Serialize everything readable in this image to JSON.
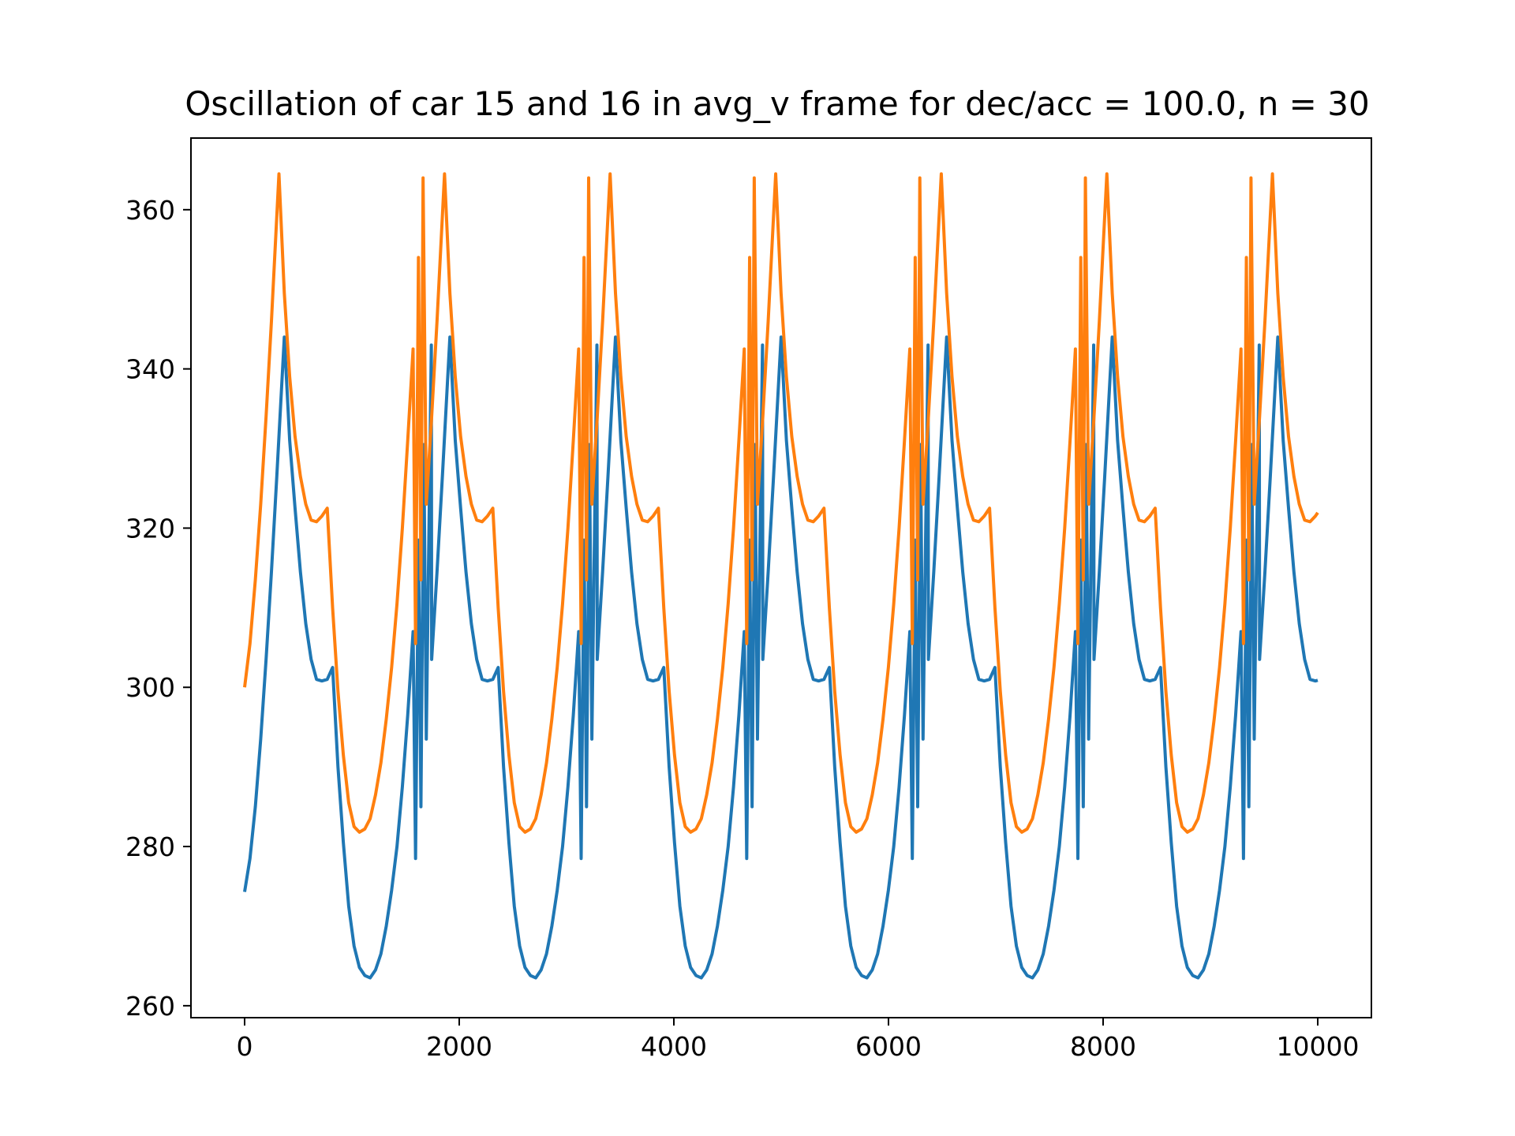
{
  "chart_data": {
    "type": "line",
    "title": "Oscillation of car 15 and 16 in avg_v frame for dec/acc = 100.0, n = 30",
    "xlabel": "",
    "ylabel": "",
    "xlim": [
      -500,
      10500
    ],
    "ylim": [
      258.5,
      369
    ],
    "x_ticks": [
      0,
      2000,
      4000,
      6000,
      8000,
      10000
    ],
    "x_tick_labels": [
      "0",
      "2000",
      "4000",
      "6000",
      "8000",
      "10000"
    ],
    "y_ticks": [
      260,
      280,
      300,
      320,
      340,
      360
    ],
    "y_tick_labels": [
      "260",
      "280",
      "300",
      "320",
      "340",
      "360"
    ],
    "grid": false,
    "legend": "none",
    "period": 1543,
    "x_end": 10000,
    "sample_step": 50,
    "series": [
      {
        "color": "#1f77b4",
        "start": [
          0,
          274.3
        ],
        "pattern": [
          [
            50,
            278.5
          ],
          [
            100,
            285.0
          ],
          [
            150,
            293.5
          ],
          [
            200,
            303.5
          ],
          [
            250,
            314.5
          ],
          [
            300,
            326.5
          ],
          [
            370,
            344.0
          ],
          [
            420,
            331.0
          ],
          [
            470,
            322.5
          ],
          [
            520,
            314.5
          ],
          [
            570,
            308.0
          ],
          [
            620,
            303.5
          ],
          [
            670,
            301.0
          ],
          [
            720,
            300.8
          ],
          [
            770,
            301.0
          ],
          [
            820,
            302.5
          ],
          [
            870,
            290.0
          ],
          [
            920,
            280.5
          ],
          [
            970,
            272.5
          ],
          [
            1020,
            267.5
          ],
          [
            1070,
            264.8
          ],
          [
            1120,
            263.8
          ],
          [
            1170,
            263.5
          ],
          [
            1220,
            264.5
          ],
          [
            1270,
            266.5
          ],
          [
            1320,
            270.0
          ],
          [
            1370,
            274.5
          ],
          [
            1420,
            280.0
          ],
          [
            1470,
            287.5
          ],
          [
            1520,
            296.5
          ],
          [
            1570,
            307.0
          ],
          [
            1620,
            318.5
          ],
          [
            1670,
            330.5
          ],
          [
            1740,
            343.0
          ]
        ]
      },
      {
        "color": "#ff7f0e",
        "start": [
          0,
          300.0
        ],
        "pattern": [
          [
            50,
            305.5
          ],
          [
            100,
            313.5
          ],
          [
            150,
            323.0
          ],
          [
            200,
            334.0
          ],
          [
            250,
            346.0
          ],
          [
            320,
            364.5
          ],
          [
            370,
            349.5
          ],
          [
            420,
            339.0
          ],
          [
            470,
            331.5
          ],
          [
            520,
            326.5
          ],
          [
            570,
            323.0
          ],
          [
            620,
            321.0
          ],
          [
            670,
            320.8
          ],
          [
            720,
            321.5
          ],
          [
            770,
            322.5
          ],
          [
            820,
            310.0
          ],
          [
            870,
            299.5
          ],
          [
            920,
            291.5
          ],
          [
            970,
            285.5
          ],
          [
            1020,
            282.5
          ],
          [
            1070,
            281.8
          ],
          [
            1120,
            282.2
          ],
          [
            1170,
            283.5
          ],
          [
            1220,
            286.5
          ],
          [
            1270,
            290.5
          ],
          [
            1320,
            296.0
          ],
          [
            1370,
            302.5
          ],
          [
            1420,
            310.5
          ],
          [
            1470,
            320.0
          ],
          [
            1520,
            331.0
          ],
          [
            1570,
            342.5
          ],
          [
            1620,
            354.0
          ],
          [
            1663,
            364.0
          ]
        ]
      }
    ]
  }
}
